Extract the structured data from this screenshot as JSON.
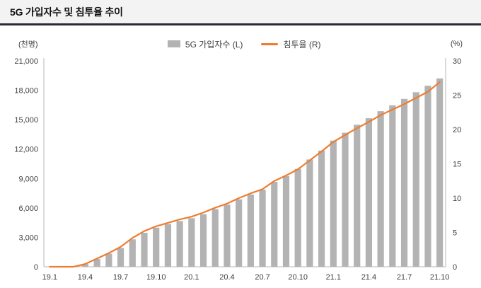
{
  "title": "5G 가입자수 및 침투율 추이",
  "colors": {
    "bar": "#b3b3b3",
    "line": "#ed7d31",
    "header_rule": "#2a2b36",
    "axis": "#b7b7b7",
    "tick_text": "#3f3f3f"
  },
  "chart_data": {
    "type": "bar",
    "title": "5G 가입자수 및 침투율 추이",
    "x": [
      "19.1",
      "19.2",
      "19.3",
      "19.4",
      "19.5",
      "19.6",
      "19.7",
      "19.8",
      "19.9",
      "19.10",
      "19.11",
      "19.12",
      "20.1",
      "20.2",
      "20.3",
      "20.4",
      "20.5",
      "20.6",
      "20.7",
      "20.8",
      "20.9",
      "20.10",
      "20.11",
      "20.12",
      "21.1",
      "21.2",
      "21.3",
      "21.4",
      "21.5",
      "21.6",
      "21.7",
      "21.8",
      "21.9",
      "21.10"
    ],
    "x_ticks": [
      {
        "index": 0,
        "label": "19.1"
      },
      {
        "index": 3,
        "label": "19.4"
      },
      {
        "index": 6,
        "label": "19.7"
      },
      {
        "index": 9,
        "label": "19.10"
      },
      {
        "index": 12,
        "label": "20.1"
      },
      {
        "index": 15,
        "label": "20.4"
      },
      {
        "index": 18,
        "label": "20.7"
      },
      {
        "index": 21,
        "label": "20.10"
      },
      {
        "index": 24,
        "label": "21.1"
      },
      {
        "index": 27,
        "label": "21.4"
      },
      {
        "index": 30,
        "label": "21.7"
      },
      {
        "index": 33,
        "label": "21.10"
      }
    ],
    "series": [
      {
        "name": "5G 가입자수 (L)",
        "type": "bar",
        "axis": "left",
        "color": "#b3b3b3",
        "values": [
          0,
          0,
          0,
          271,
          784,
          1336,
          1912,
          2795,
          3466,
          3988,
          4356,
          4668,
          4957,
          5361,
          5881,
          6339,
          6877,
          7370,
          7857,
          8657,
          9249,
          9983,
          10939,
          11851,
          12867,
          13669,
          14484,
          15147,
          15867,
          16465,
          17117,
          17800,
          18459,
          19208
        ]
      },
      {
        "name": "침투율 (R)",
        "type": "line",
        "axis": "right",
        "color": "#ed7d31",
        "values": [
          0,
          0,
          0,
          0.4,
          1.2,
          2.0,
          2.9,
          4.2,
          5.2,
          5.9,
          6.4,
          6.9,
          7.3,
          7.9,
          8.6,
          9.2,
          10.0,
          10.7,
          11.3,
          12.5,
          13.3,
          14.2,
          15.5,
          16.8,
          18.2,
          19.2,
          20.2,
          21.1,
          22.1,
          22.9,
          23.7,
          24.6,
          25.5,
          26.9
        ]
      }
    ],
    "left_axis": {
      "label": "(천명)",
      "min": 0,
      "max": 21000,
      "tick_values": [
        0,
        3000,
        6000,
        9000,
        12000,
        15000,
        18000,
        21000
      ],
      "tick_labels": [
        "0",
        "3,000",
        "6,000",
        "9,000",
        "12,000",
        "15,000",
        "18,000",
        "21,000"
      ]
    },
    "right_axis": {
      "label": "(%)",
      "min": 0,
      "max": 30,
      "tick_values": [
        0,
        5,
        10,
        15,
        20,
        25,
        30
      ],
      "tick_labels": [
        "0",
        "5",
        "10",
        "15",
        "20",
        "25",
        "30"
      ]
    },
    "grid": false,
    "legend_position": "top-center"
  }
}
